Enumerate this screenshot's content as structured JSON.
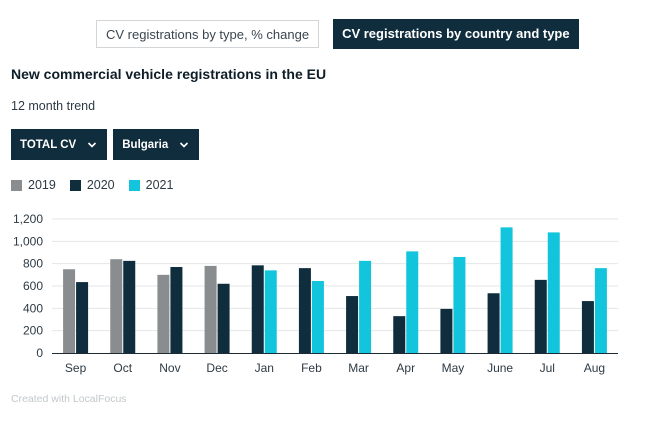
{
  "tabs": [
    {
      "label": "CV registrations by type, % change",
      "active": false
    },
    {
      "label": "CV registrations by country and type",
      "active": true
    }
  ],
  "title": "New commercial vehicle registrations in the EU",
  "subtitle": "12 month trend",
  "filters": {
    "type": "TOTAL CV",
    "country": "Bulgaria"
  },
  "credit": "Created with LocalFocus",
  "colors": {
    "2019": "#8a8d8f",
    "2020": "#0f2d3d",
    "2021": "#12c5dc"
  },
  "chart_data": {
    "type": "bar",
    "title": "New commercial vehicle registrations in the EU",
    "categories": [
      "Sep",
      "Oct",
      "Nov",
      "Dec",
      "Jan",
      "Feb",
      "Mar",
      "Apr",
      "May",
      "June",
      "Jul",
      "Aug"
    ],
    "series": [
      {
        "name": "2019",
        "values": [
          750,
          840,
          700,
          780,
          null,
          null,
          null,
          null,
          null,
          null,
          null,
          null
        ]
      },
      {
        "name": "2020",
        "values": [
          635,
          825,
          770,
          620,
          785,
          760,
          510,
          330,
          395,
          535,
          655,
          465
        ]
      },
      {
        "name": "2021",
        "values": [
          null,
          null,
          null,
          null,
          740,
          645,
          825,
          910,
          860,
          1125,
          1080,
          760
        ]
      }
    ],
    "yticks": [
      0,
      200,
      400,
      600,
      800,
      1000,
      1200
    ],
    "ytick_labels": [
      "0",
      "200",
      "400",
      "600",
      "800",
      "1,000",
      "1,200"
    ],
    "ylim": [
      0,
      1200
    ],
    "grid": true,
    "legend": "top-left"
  }
}
